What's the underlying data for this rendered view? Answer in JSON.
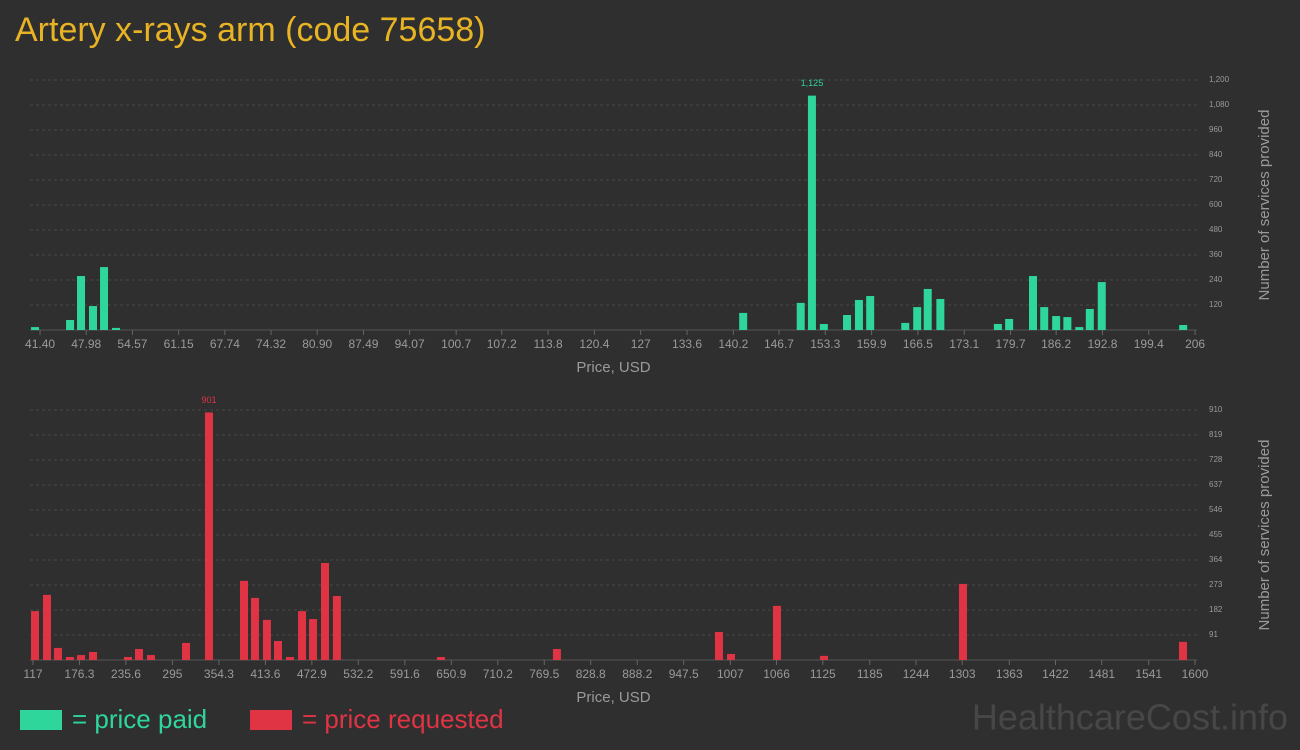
{
  "chart_data": [
    {
      "type": "bar",
      "title": "Artery x-rays arm (code 75658)",
      "x_label": "Price, USD",
      "y_label": "Number of services provided",
      "xlim": [
        39.97,
        206.7
      ],
      "xticks": [
        {
          "value": 41.4,
          "label": "41.40"
        },
        47.98,
        54.57,
        61.15,
        67.74,
        74.32,
        {
          "value": 80.9,
          "label": "80.90"
        },
        87.49,
        94.07,
        100.7,
        107.2,
        113.8,
        120.4,
        127,
        133.6,
        140.2,
        146.7,
        153.3,
        159.9,
        166.5,
        173.1,
        179.7,
        186.2,
        192.8,
        199.4,
        206
      ],
      "ylim": [
        0,
        1200
      ],
      "yticks": [
        120,
        240,
        360,
        480,
        600,
        720,
        840,
        960,
        {
          "value": 1080,
          "label": "1,080"
        },
        {
          "value": 1200,
          "label": "1,200"
        }
      ],
      "grid": true,
      "series": [
        {
          "name": "= price paid",
          "color": "#2ed69b",
          "x": [
            40.69,
            45.68,
            47.24,
            48.95,
            50.52,
            52.23,
            141.6,
            149.8,
            151.4,
            153.1,
            156.4,
            158.1,
            159.7,
            164.7,
            166.4,
            167.9,
            169.7,
            177.9,
            179.5,
            182.9,
            184.5,
            186.2,
            187.8,
            189.5,
            191.0,
            192.7,
            204.3
          ],
          "values": [
            14,
            48,
            259,
            115,
            302,
            10,
            82,
            130,
            1125,
            29,
            72,
            144,
            163,
            34,
            110,
            197,
            149,
            29,
            53,
            259,
            110,
            67,
            62,
            14,
            101,
            230,
            24
          ],
          "value_labels": [
            null,
            null,
            null,
            null,
            null,
            null,
            null,
            null,
            "1,125",
            null,
            null,
            null,
            null,
            null,
            null,
            null,
            null,
            null,
            null,
            null,
            null,
            null,
            null,
            null,
            null,
            null,
            null
          ]
        }
      ]
    },
    {
      "type": "bar",
      "x_label": "Price, USD",
      "y_label": "Number of services provided",
      "xlim": [
        113.2,
        1606.4
      ],
      "xticks": [
        117,
        176.3,
        235.6,
        295,
        354.3,
        413.6,
        472.9,
        532.2,
        591.6,
        650.9,
        710.2,
        769.5,
        828.8,
        888.2,
        947.5,
        1007,
        1066,
        1125,
        1185,
        1244,
        1303,
        1363,
        1422,
        1481,
        1541,
        1600
      ],
      "ylim": [
        0,
        910
      ],
      "yticks": [
        91,
        182,
        273,
        364,
        455,
        546,
        637,
        728,
        819,
        910
      ],
      "grid": true,
      "series": [
        {
          "name": "= price requested",
          "color": "#e03445",
          "x": [
            119.6,
            134.9,
            148.9,
            164.2,
            178.3,
            193.6,
            238.2,
            252.3,
            267.6,
            312.3,
            341.6,
            386.3,
            400.3,
            415.6,
            429.7,
            445.0,
            460.4,
            474.4,
            489.7,
            504.9,
            637.7,
            785.7,
            992.5,
            1007.8,
            1066.5,
            1126.5,
            1303.9,
            1584.7
          ],
          "values": [
            178,
            237,
            44,
            11,
            18,
            29,
            11,
            40,
            18,
            62,
            901,
            288,
            226,
            146,
            69,
            11,
            178,
            149,
            353,
            233,
            11,
            40,
            102,
            22,
            197,
            15,
            277,
            66
          ],
          "value_labels": [
            null,
            null,
            null,
            null,
            null,
            null,
            null,
            null,
            null,
            null,
            "901",
            null,
            null,
            null,
            null,
            null,
            null,
            null,
            null,
            null,
            null,
            null,
            null,
            null,
            null,
            null,
            null,
            null
          ]
        }
      ]
    }
  ],
  "watermark": "HealthcareCost.info"
}
